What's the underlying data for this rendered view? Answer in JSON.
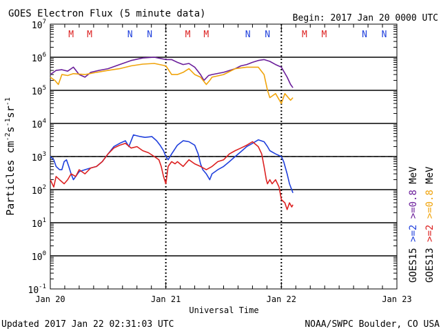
{
  "header": {
    "title": "GOES Electron Flux (5 minute data)",
    "begin": "Begin: 2017 Jan 20 0000 UTC"
  },
  "footer": {
    "updated": "Updated 2017 Jan 22 02:31:03 UTC",
    "credit": "NOAA/SWPC Boulder, CO USA"
  },
  "colors": {
    "goes15_ge2": "#1f3fdc",
    "goes13_ge2": "#dc2020",
    "goes15_ge08": "#6a1d9a",
    "goes13_ge08": "#f0a30a",
    "M": "#dc2020",
    "N": "#1f3fdc"
  },
  "chart_data": {
    "type": "line",
    "title": "GOES Electron Flux (5 minute data)",
    "xlabel": "Universal Time",
    "ylabel": "Particles cm-2s-1sr-1",
    "y_scale": "log",
    "ylim": [
      0.1,
      10000000
    ],
    "y_ticks": [
      {
        "value": 10000000,
        "base": "10",
        "exp": "7"
      },
      {
        "value": 1000000,
        "base": "10",
        "exp": "6"
      },
      {
        "value": 100000,
        "base": "10",
        "exp": "5"
      },
      {
        "value": 10000,
        "base": "10",
        "exp": "4"
      },
      {
        "value": 1000,
        "base": "10",
        "exp": "3"
      },
      {
        "value": 100,
        "base": "10",
        "exp": "2"
      },
      {
        "value": 10,
        "base": "10",
        "exp": "1"
      },
      {
        "value": 1,
        "base": "10",
        "exp": "0"
      },
      {
        "value": 0.1,
        "base": "10",
        "exp": "-1"
      }
    ],
    "x_range_days": [
      "2017-01-20",
      "2017-01-23"
    ],
    "x_ticks": [
      "Jan 20",
      "Jan 21",
      "Jan 22",
      "Jan 23"
    ],
    "threshold_line": 1000,
    "markers": [
      {
        "label": "M",
        "day": 0.18
      },
      {
        "label": "M",
        "day": 0.34
      },
      {
        "label": "N",
        "day": 0.69
      },
      {
        "label": "N",
        "day": 0.86
      },
      {
        "label": "M",
        "day": 1.19
      },
      {
        "label": "M",
        "day": 1.35
      },
      {
        "label": "N",
        "day": 1.71
      },
      {
        "label": "N",
        "day": 1.88
      },
      {
        "label": "M",
        "day": 2.2
      },
      {
        "label": "M",
        "day": 2.37
      },
      {
        "label": "N",
        "day": 2.72
      },
      {
        "label": "N",
        "day": 2.89
      }
    ],
    "legend": [
      {
        "prefix": "GOES15",
        "threshold": ">=2",
        "unit": "",
        "color_key": "goes15_ge2"
      },
      {
        "prefix": "GOES13",
        "threshold": ">=2",
        "unit": "",
        "color_key": "goes13_ge2"
      },
      {
        "prefix": "",
        "threshold": ">=0.8",
        "unit": "MeV",
        "color_key": "goes15_ge08"
      },
      {
        "prefix": "",
        "threshold": ">=0.8",
        "unit": "MeV",
        "color_key": "goes13_ge08"
      }
    ],
    "series": [
      {
        "key": "goes15_ge08",
        "points": [
          [
            0.0,
            300000
          ],
          [
            0.05,
            400000
          ],
          [
            0.1,
            420000
          ],
          [
            0.15,
            380000
          ],
          [
            0.2,
            500000
          ],
          [
            0.25,
            300000
          ],
          [
            0.3,
            250000
          ],
          [
            0.35,
            350000
          ],
          [
            0.42,
            400000
          ],
          [
            0.5,
            450000
          ],
          [
            0.6,
            600000
          ],
          [
            0.7,
            800000
          ],
          [
            0.8,
            950000
          ],
          [
            0.9,
            1000000
          ],
          [
            1.0,
            850000
          ],
          [
            1.05,
            850000
          ],
          [
            1.1,
            700000
          ],
          [
            1.15,
            600000
          ],
          [
            1.2,
            650000
          ],
          [
            1.25,
            500000
          ],
          [
            1.3,
            300000
          ],
          [
            1.33,
            200000
          ],
          [
            1.37,
            280000
          ],
          [
            1.4,
            300000
          ],
          [
            1.5,
            350000
          ],
          [
            1.6,
            450000
          ],
          [
            1.65,
            550000
          ],
          [
            1.7,
            600000
          ],
          [
            1.75,
            700000
          ],
          [
            1.8,
            800000
          ],
          [
            1.85,
            850000
          ],
          [
            1.9,
            750000
          ],
          [
            1.95,
            600000
          ],
          [
            2.0,
            500000
          ],
          [
            2.05,
            250000
          ],
          [
            2.08,
            150000
          ],
          [
            2.1,
            120000
          ]
        ]
      },
      {
        "key": "goes13_ge08",
        "points": [
          [
            0.0,
            250000
          ],
          [
            0.04,
            200000
          ],
          [
            0.07,
            150000
          ],
          [
            0.1,
            300000
          ],
          [
            0.15,
            280000
          ],
          [
            0.2,
            320000
          ],
          [
            0.3,
            300000
          ],
          [
            0.4,
            350000
          ],
          [
            0.5,
            400000
          ],
          [
            0.6,
            450000
          ],
          [
            0.7,
            550000
          ],
          [
            0.8,
            620000
          ],
          [
            0.9,
            650000
          ],
          [
            1.0,
            550000
          ],
          [
            1.05,
            300000
          ],
          [
            1.1,
            300000
          ],
          [
            1.15,
            350000
          ],
          [
            1.2,
            450000
          ],
          [
            1.25,
            300000
          ],
          [
            1.3,
            250000
          ],
          [
            1.35,
            150000
          ],
          [
            1.38,
            200000
          ],
          [
            1.4,
            250000
          ],
          [
            1.5,
            300000
          ],
          [
            1.6,
            450000
          ],
          [
            1.7,
            500000
          ],
          [
            1.8,
            500000
          ],
          [
            1.85,
            300000
          ],
          [
            1.88,
            100000
          ],
          [
            1.9,
            60000
          ],
          [
            1.95,
            80000
          ],
          [
            2.0,
            40000
          ],
          [
            2.03,
            80000
          ],
          [
            2.06,
            60000
          ],
          [
            2.08,
            50000
          ],
          [
            2.1,
            60000
          ]
        ]
      },
      {
        "key": "goes15_ge2",
        "points": [
          [
            0.0,
            1000
          ],
          [
            0.03,
            800
          ],
          [
            0.05,
            500
          ],
          [
            0.08,
            400
          ],
          [
            0.1,
            400
          ],
          [
            0.12,
            700
          ],
          [
            0.14,
            800
          ],
          [
            0.16,
            500
          ],
          [
            0.18,
            300
          ],
          [
            0.2,
            200
          ],
          [
            0.25,
            350
          ],
          [
            0.3,
            400
          ],
          [
            0.35,
            450
          ],
          [
            0.4,
            500
          ],
          [
            0.45,
            700
          ],
          [
            0.5,
            1200
          ],
          [
            0.55,
            2000
          ],
          [
            0.6,
            2500
          ],
          [
            0.65,
            3000
          ],
          [
            0.68,
            2000
          ],
          [
            0.72,
            4500
          ],
          [
            0.78,
            4000
          ],
          [
            0.82,
            3800
          ],
          [
            0.88,
            4000
          ],
          [
            0.92,
            3000
          ],
          [
            0.95,
            2200
          ],
          [
            0.98,
            1500
          ],
          [
            1.0,
            1000
          ],
          [
            1.02,
            800
          ],
          [
            1.05,
            1200
          ],
          [
            1.1,
            2200
          ],
          [
            1.15,
            3000
          ],
          [
            1.2,
            2800
          ],
          [
            1.25,
            2200
          ],
          [
            1.28,
            1200
          ],
          [
            1.3,
            600
          ],
          [
            1.32,
            400
          ],
          [
            1.35,
            300
          ],
          [
            1.38,
            200
          ],
          [
            1.4,
            300
          ],
          [
            1.45,
            400
          ],
          [
            1.5,
            500
          ],
          [
            1.55,
            700
          ],
          [
            1.6,
            1000
          ],
          [
            1.65,
            1400
          ],
          [
            1.7,
            2000
          ],
          [
            1.75,
            2500
          ],
          [
            1.8,
            3200
          ],
          [
            1.85,
            2800
          ],
          [
            1.88,
            2000
          ],
          [
            1.9,
            1500
          ],
          [
            1.95,
            1200
          ],
          [
            2.0,
            1000
          ],
          [
            2.02,
            700
          ],
          [
            2.05,
            300
          ],
          [
            2.07,
            150
          ],
          [
            2.1,
            80
          ]
        ]
      },
      {
        "key": "goes13_ge2",
        "points": [
          [
            0.0,
            200
          ],
          [
            0.03,
            120
          ],
          [
            0.05,
            250
          ],
          [
            0.08,
            200
          ],
          [
            0.12,
            150
          ],
          [
            0.15,
            200
          ],
          [
            0.18,
            300
          ],
          [
            0.22,
            250
          ],
          [
            0.25,
            400
          ],
          [
            0.3,
            300
          ],
          [
            0.35,
            450
          ],
          [
            0.4,
            500
          ],
          [
            0.45,
            700
          ],
          [
            0.5,
            1200
          ],
          [
            0.55,
            1800
          ],
          [
            0.6,
            2200
          ],
          [
            0.65,
            2500
          ],
          [
            0.7,
            1800
          ],
          [
            0.75,
            2000
          ],
          [
            0.8,
            1500
          ],
          [
            0.85,
            1300
          ],
          [
            0.9,
            1000
          ],
          [
            0.94,
            800
          ],
          [
            0.96,
            500
          ],
          [
            0.98,
            250
          ],
          [
            1.0,
            150
          ],
          [
            1.02,
            500
          ],
          [
            1.05,
            700
          ],
          [
            1.08,
            600
          ],
          [
            1.1,
            700
          ],
          [
            1.15,
            500
          ],
          [
            1.2,
            800
          ],
          [
            1.25,
            600
          ],
          [
            1.3,
            500
          ],
          [
            1.35,
            400
          ],
          [
            1.4,
            500
          ],
          [
            1.45,
            700
          ],
          [
            1.5,
            800
          ],
          [
            1.55,
            1200
          ],
          [
            1.6,
            1500
          ],
          [
            1.65,
            1800
          ],
          [
            1.7,
            2200
          ],
          [
            1.75,
            2800
          ],
          [
            1.8,
            2000
          ],
          [
            1.83,
            1200
          ],
          [
            1.85,
            500
          ],
          [
            1.87,
            200
          ],
          [
            1.88,
            150
          ],
          [
            1.9,
            200
          ],
          [
            1.92,
            150
          ],
          [
            1.95,
            200
          ],
          [
            1.98,
            120
          ],
          [
            2.0,
            50
          ],
          [
            2.03,
            40
          ],
          [
            2.05,
            25
          ],
          [
            2.07,
            40
          ],
          [
            2.09,
            30
          ],
          [
            2.1,
            35
          ]
        ]
      }
    ]
  }
}
